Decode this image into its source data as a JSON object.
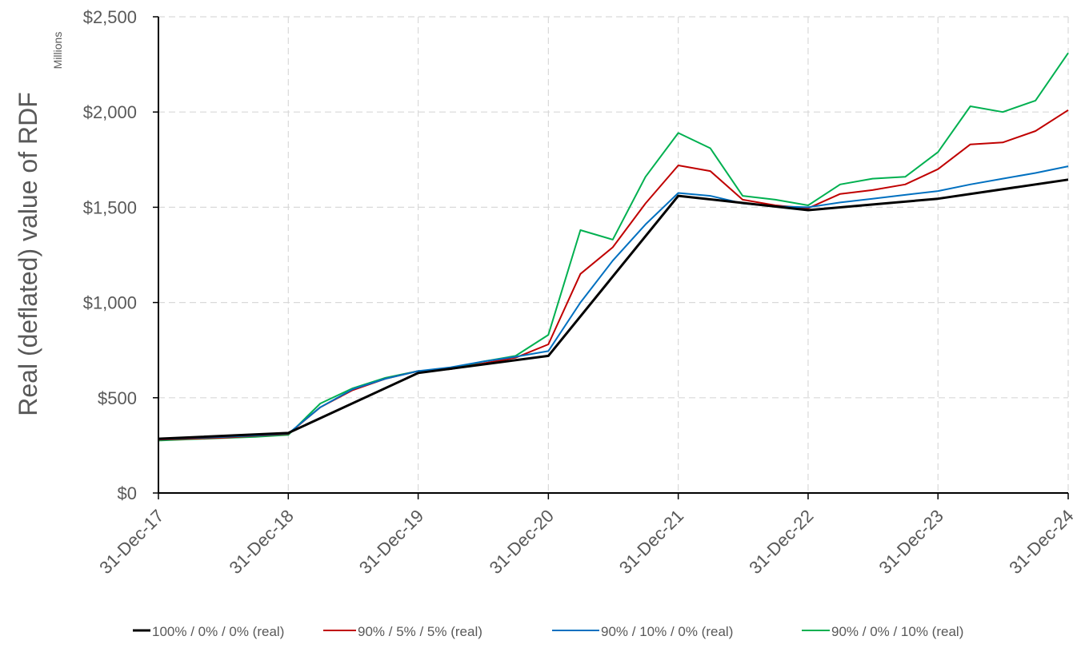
{
  "chart_data": {
    "type": "line",
    "ylabel": "Real (deflated) value of RDF",
    "units_label": "Millions",
    "ylim": [
      0,
      2500
    ],
    "yticks": [
      {
        "value": 0,
        "label": "$0"
      },
      {
        "value": 500,
        "label": "$500"
      },
      {
        "value": 1000,
        "label": "$1,000"
      },
      {
        "value": 1500,
        "label": "$1,500"
      },
      {
        "value": 2000,
        "label": "$2,000"
      },
      {
        "value": 2500,
        "label": "$2,500"
      }
    ],
    "xticks": [
      "31-Dec-17",
      "31-Dec-18",
      "31-Dec-19",
      "31-Dec-20",
      "31-Dec-21",
      "31-Dec-22",
      "31-Dec-23",
      "31-Dec-24"
    ],
    "grid": true,
    "legend_position": "bottom",
    "series": [
      {
        "name": "100% / 0% / 0% (real)",
        "color": "#000000",
        "x": [
          "31-Dec-17",
          "31-Dec-18",
          "31-Dec-19",
          "31-Dec-20",
          "31-Dec-21",
          "31-Dec-22",
          "31-Dec-23",
          "31-Dec-24"
        ],
        "y": [
          285,
          315,
          630,
          720,
          1560,
          1485,
          1545,
          1645
        ]
      },
      {
        "name": "90% / 5% / 5% (real)",
        "color": "#C00000",
        "x": [
          "31-Dec-17",
          "31-Mar-18",
          "30-Jun-18",
          "30-Sep-18",
          "31-Dec-18",
          "31-Mar-19",
          "30-Jun-19",
          "30-Sep-19",
          "31-Dec-19",
          "31-Mar-20",
          "30-Jun-20",
          "30-Sep-20",
          "31-Dec-20",
          "31-Mar-21",
          "30-Jun-21",
          "30-Sep-21",
          "31-Dec-21",
          "31-Mar-22",
          "30-Jun-22",
          "30-Sep-22",
          "31-Dec-22",
          "31-Mar-23",
          "30-Jun-23",
          "30-Sep-23",
          "31-Dec-23",
          "31-Mar-24",
          "30-Jun-24",
          "30-Sep-24",
          "31-Dec-24"
        ],
        "y": [
          280,
          285,
          290,
          300,
          310,
          450,
          540,
          600,
          640,
          650,
          680,
          710,
          780,
          1150,
          1290,
          1520,
          1720,
          1690,
          1540,
          1510,
          1495,
          1570,
          1590,
          1620,
          1700,
          1830,
          1840,
          1900,
          2010
        ]
      },
      {
        "name": "90% / 10% / 0% (real)",
        "color": "#0070C0",
        "x": [
          "31-Dec-17",
          "31-Mar-18",
          "30-Jun-18",
          "30-Sep-18",
          "31-Dec-18",
          "31-Mar-19",
          "30-Jun-19",
          "30-Sep-19",
          "31-Dec-19",
          "31-Mar-20",
          "30-Jun-20",
          "30-Sep-20",
          "31-Dec-20",
          "31-Mar-21",
          "30-Jun-21",
          "30-Sep-21",
          "31-Dec-21",
          "31-Mar-22",
          "30-Jun-22",
          "30-Sep-22",
          "31-Dec-22",
          "31-Mar-23",
          "30-Jun-23",
          "30-Sep-23",
          "31-Dec-23",
          "31-Mar-24",
          "30-Jun-24",
          "30-Sep-24",
          "31-Dec-24"
        ],
        "y": [
          282,
          288,
          294,
          302,
          312,
          450,
          545,
          600,
          640,
          660,
          690,
          715,
          745,
          1000,
          1220,
          1410,
          1575,
          1560,
          1520,
          1505,
          1500,
          1525,
          1545,
          1565,
          1585,
          1620,
          1650,
          1680,
          1715
        ]
      },
      {
        "name": "90% / 0% / 10% (real)",
        "color": "#00B050",
        "x": [
          "31-Dec-17",
          "31-Mar-18",
          "30-Jun-18",
          "30-Sep-18",
          "31-Dec-18",
          "31-Mar-19",
          "30-Jun-19",
          "30-Sep-19",
          "31-Dec-19",
          "31-Mar-20",
          "30-Jun-20",
          "30-Sep-20",
          "31-Dec-20",
          "31-Mar-21",
          "30-Jun-21",
          "30-Sep-21",
          "31-Dec-21",
          "31-Mar-22",
          "30-Jun-22",
          "30-Sep-22",
          "31-Dec-22",
          "31-Mar-23",
          "30-Jun-23",
          "30-Sep-23",
          "31-Dec-23",
          "31-Mar-24",
          "30-Jun-24",
          "30-Sep-24",
          "31-Dec-24"
        ],
        "y": [
          275,
          282,
          288,
          295,
          305,
          470,
          550,
          605,
          640,
          650,
          690,
          720,
          830,
          1380,
          1330,
          1660,
          1890,
          1810,
          1560,
          1540,
          1510,
          1620,
          1650,
          1660,
          1790,
          2030,
          2000,
          2060,
          2310
        ]
      }
    ]
  }
}
